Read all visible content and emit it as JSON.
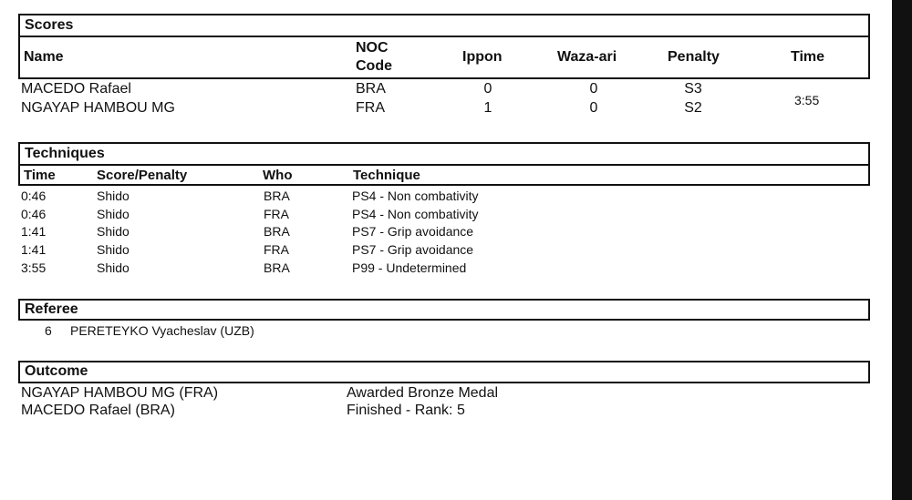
{
  "scores": {
    "title": "Scores",
    "headers": {
      "name": "Name",
      "noc_line1": "NOC",
      "noc_line2": "Code",
      "ippon": "Ippon",
      "waza_ari": "Waza-ari",
      "penalty": "Penalty",
      "time": "Time"
    },
    "rows": [
      {
        "name": "MACEDO Rafael",
        "noc": "BRA",
        "ippon": "0",
        "waza_ari": "0",
        "penalty": "S3"
      },
      {
        "name": "NGAYAP HAMBOU MG",
        "noc": "FRA",
        "ippon": "1",
        "waza_ari": "0",
        "penalty": "S2"
      }
    ],
    "time": "3:55"
  },
  "techniques": {
    "title": "Techniques",
    "headers": {
      "time": "Time",
      "score_penalty": "Score/Penalty",
      "who": "Who",
      "technique": "Technique"
    },
    "rows": [
      {
        "time": "0:46",
        "score": "Shido",
        "who": "BRA",
        "technique": "PS4 - Non combativity"
      },
      {
        "time": "0:46",
        "score": "Shido",
        "who": "FRA",
        "technique": "PS4 - Non combativity"
      },
      {
        "time": "1:41",
        "score": "Shido",
        "who": "BRA",
        "technique": "PS7 - Grip avoidance"
      },
      {
        "time": "1:41",
        "score": "Shido",
        "who": "FRA",
        "technique": "PS7 - Grip avoidance"
      },
      {
        "time": "3:55",
        "score": "Shido",
        "who": "BRA",
        "technique": "P99 - Undetermined"
      }
    ]
  },
  "referee": {
    "title": "Referee",
    "number": "6",
    "name": "PERETEYKO Vyacheslav (UZB)"
  },
  "outcome": {
    "title": "Outcome",
    "rows": [
      {
        "athlete": "NGAYAP HAMBOU MG (FRA)",
        "result": "Awarded Bronze Medal"
      },
      {
        "athlete": "MACEDO Rafael (BRA)",
        "result": "Finished - Rank: 5"
      }
    ]
  }
}
